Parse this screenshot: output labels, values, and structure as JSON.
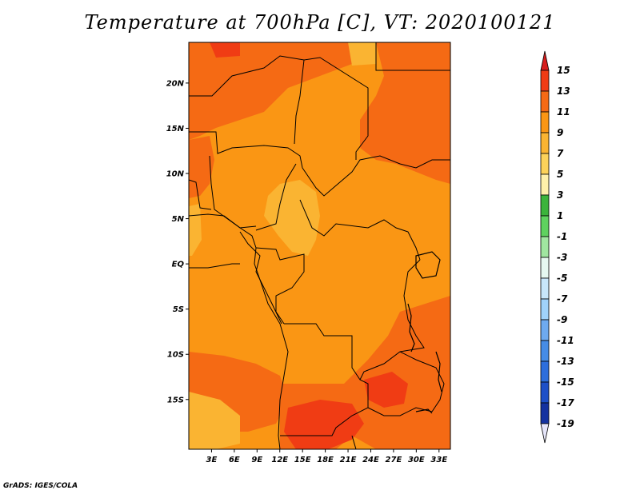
{
  "title": "Temperature at 700hPa [C], VT: 2020100121",
  "credit": "GrADS: IGES/COLA",
  "map": {
    "lon_range": [
      0,
      34.5
    ],
    "lat_range": [
      -20.5,
      24.5
    ],
    "lat_ticks": [
      {
        "value": 20,
        "label": "20N"
      },
      {
        "value": 15,
        "label": "15N"
      },
      {
        "value": 10,
        "label": "10N"
      },
      {
        "value": 5,
        "label": "5N"
      },
      {
        "value": 0,
        "label": "EQ"
      },
      {
        "value": -5,
        "label": "5S"
      },
      {
        "value": -10,
        "label": "10S"
      },
      {
        "value": -15,
        "label": "15S"
      }
    ],
    "lon_ticks": [
      {
        "value": 3,
        "label": "3E"
      },
      {
        "value": 6,
        "label": "6E"
      },
      {
        "value": 9,
        "label": "9E"
      },
      {
        "value": 12,
        "label": "12E"
      },
      {
        "value": 15,
        "label": "15E"
      },
      {
        "value": 18,
        "label": "18E"
      },
      {
        "value": 21,
        "label": "21E"
      },
      {
        "value": 24,
        "label": "24E"
      },
      {
        "value": 27,
        "label": "27E"
      },
      {
        "value": 30,
        "label": "30E"
      },
      {
        "value": 33,
        "label": "33E"
      }
    ]
  },
  "colorbar": {
    "levels": [
      {
        "label": "15",
        "color": "#e8201c"
      },
      {
        "label": "13",
        "color": "#f03c14"
      },
      {
        "label": "11",
        "color": "#f56a14"
      },
      {
        "label": "9",
        "color": "#fa9614"
      },
      {
        "label": "7",
        "color": "#fab432"
      },
      {
        "label": "5",
        "color": "#fcd25a"
      },
      {
        "label": "3",
        "color": "#fef0aa"
      },
      {
        "label": "1",
        "color": "#3cb43c"
      },
      {
        "label": "-1",
        "color": "#5fd25f"
      },
      {
        "label": "-3",
        "color": "#a0e6a0"
      },
      {
        "label": "-5",
        "color": "#e6f8f0"
      },
      {
        "label": "-7",
        "color": "#c8e6fa"
      },
      {
        "label": "-9",
        "color": "#a0d2fa"
      },
      {
        "label": "-11",
        "color": "#6eaaf0"
      },
      {
        "label": "-13",
        "color": "#468ce6"
      },
      {
        "label": "-15",
        "color": "#2d6edc"
      },
      {
        "label": "-17",
        "color": "#1e50c8"
      },
      {
        "label": "-19",
        "color": "#1432a0"
      }
    ],
    "top_arrow_color": "#d61c1c",
    "bottom_arrow_color": "#e6e6fa",
    "bottom_box_color": "#0a1470"
  }
}
